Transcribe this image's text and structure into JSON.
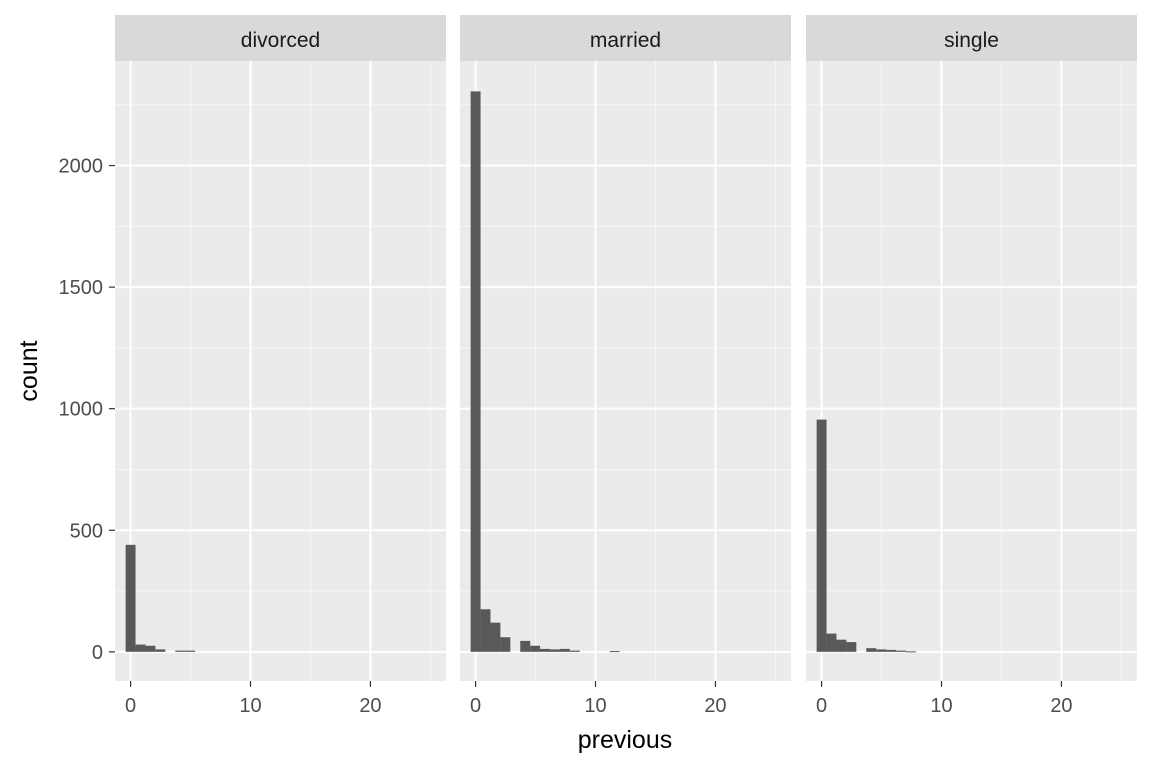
{
  "chart_data": {
    "type": "bar",
    "subtype": "faceted-histogram",
    "xlabel": "previous",
    "ylabel": "count",
    "xlim": [
      -1.3,
      26.3
    ],
    "ylim": [
      -120,
      2430
    ],
    "x_ticks": [
      0,
      10,
      20
    ],
    "x_tick_labels": [
      "0",
      "10",
      "20"
    ],
    "y_ticks": [
      0,
      500,
      1000,
      1500,
      2000
    ],
    "y_tick_labels": [
      "0",
      "500",
      "1000",
      "1500",
      "2000"
    ],
    "x_minor_ticks": [
      5,
      15,
      25
    ],
    "y_minor_ticks": [
      250,
      750,
      1250,
      1750,
      2250
    ],
    "bin_width": 0.8276,
    "bin_start": -0.4138,
    "grid": true,
    "bar_color": "#595959",
    "panel_background": "#ebebeb",
    "strip_background": "#d9d9d9",
    "grid_color": "#ffffff",
    "facets": [
      {
        "label": "divorced",
        "counts": [
          440,
          30,
          25,
          10,
          0,
          5,
          5,
          0,
          0,
          0,
          0,
          0,
          0,
          0,
          0,
          0,
          0,
          0,
          0,
          0,
          0,
          0,
          0,
          0,
          0,
          0,
          0,
          0,
          0,
          0
        ]
      },
      {
        "label": "married",
        "counts": [
          2305,
          175,
          120,
          60,
          0,
          45,
          25,
          12,
          10,
          12,
          5,
          0,
          0,
          0,
          3,
          0,
          0,
          0,
          0,
          0,
          0,
          0,
          0,
          0,
          0,
          0,
          0,
          0,
          0,
          0
        ]
      },
      {
        "label": "single",
        "counts": [
          955,
          75,
          50,
          40,
          0,
          15,
          10,
          8,
          5,
          2,
          0,
          0,
          0,
          0,
          0,
          0,
          0,
          0,
          0,
          0,
          0,
          0,
          0,
          0,
          0,
          0,
          0,
          0,
          0,
          0
        ]
      }
    ]
  }
}
